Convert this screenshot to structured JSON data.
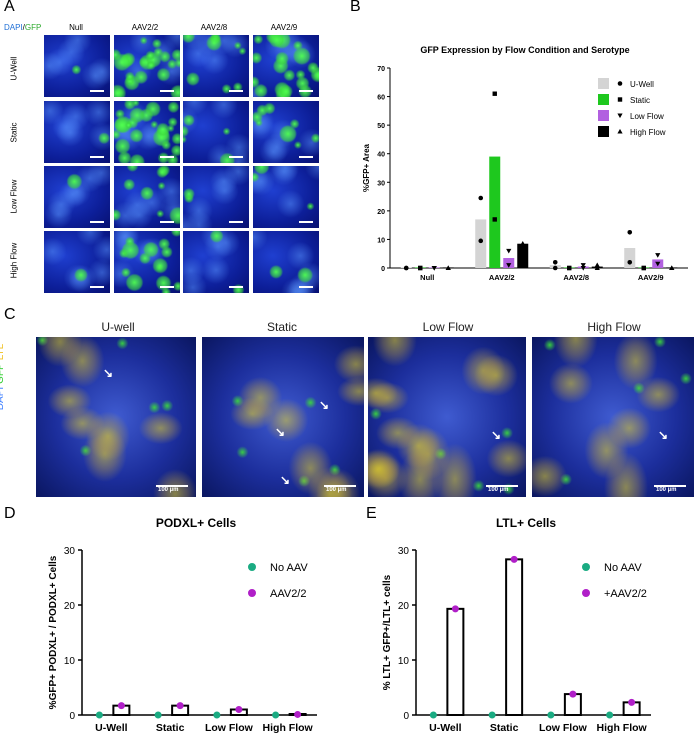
{
  "panels": {
    "A": "A",
    "B": "B",
    "C": "C",
    "D": "D",
    "E": "E"
  },
  "panel_a": {
    "stain_dapi": "DAPI",
    "stain_sep": "/",
    "stain_gfp": "GFP",
    "columns": [
      "Null",
      "AAV2/2",
      "AAV2/8",
      "AAV2/9"
    ],
    "rows": [
      "U-Well",
      "Static",
      "Low Flow",
      "High Flow"
    ]
  },
  "panel_c": {
    "titles": [
      "U-well",
      "Static",
      "Low Flow",
      "High Flow"
    ],
    "stain_dapi": "DAPI",
    "stain_gfp": "GFP",
    "stain_ltl": "LTL",
    "scalebar": "100 µm"
  },
  "colors": {
    "u_well": "#d4d4d4",
    "static": "#1ec81e",
    "low_flow": "#b260e0",
    "high_flow": "#000000",
    "no_aav": "#1aab82",
    "aav": "#b01fc8"
  },
  "chart_data": [
    {
      "type": "bar",
      "title": "GFP Expression by Flow Condition and Serotype",
      "ylabel": "%GFP+ Area",
      "xlabel": "",
      "ylim": [
        0,
        70
      ],
      "yticks": [
        0,
        10,
        20,
        30,
        40,
        50,
        60,
        70
      ],
      "categories": [
        "Null",
        "AAV2/2",
        "AAV2/8",
        "AAV2/9"
      ],
      "legend_position": "top-right",
      "series": [
        {
          "name": "U-Well",
          "values": [
            0,
            17,
            1,
            7
          ],
          "points": [
            [
              0,
              0
            ],
            [
              24.5,
              9.5
            ],
            [
              2,
              0
            ],
            [
              12.5,
              2
            ]
          ]
        },
        {
          "name": "Static",
          "values": [
            0,
            39,
            0,
            0
          ],
          "points": [
            [
              0,
              0
            ],
            [
              61,
              17
            ],
            [
              0,
              0
            ],
            [
              0,
              0
            ]
          ]
        },
        {
          "name": "Low Flow",
          "values": [
            0,
            3.5,
            0.5,
            3
          ],
          "points": [
            [
              0,
              0
            ],
            [
              6,
              1
            ],
            [
              1,
              0
            ],
            [
              4.5,
              1.5
            ]
          ]
        },
        {
          "name": "High Flow",
          "values": [
            0,
            8.5,
            0.5,
            0
          ],
          "points": [
            [
              0,
              0
            ],
            [
              8.5,
              8.5
            ],
            [
              1,
              0
            ],
            [
              0,
              0
            ]
          ]
        }
      ]
    },
    {
      "type": "bar",
      "title": "PODXL+ Cells",
      "ylabel": "%GFP+ PODXL+ / PODXL+ Cells",
      "xlabel": "",
      "ylim": [
        0,
        30
      ],
      "yticks": [
        0,
        10,
        20,
        30
      ],
      "categories": [
        "U-Well",
        "Static",
        "Low Flow",
        "High Flow"
      ],
      "legend_position": "top-right",
      "series": [
        {
          "name": "No AAV",
          "values": [
            0,
            0,
            0,
            0
          ]
        },
        {
          "name": "AAV2/2",
          "values": [
            1.7,
            1.7,
            1.0,
            0.1
          ]
        }
      ]
    },
    {
      "type": "bar",
      "title": "LTL+ Cells",
      "ylabel": "% LTL+ GFP+/LTL+ cells",
      "xlabel": "",
      "ylim": [
        0,
        30
      ],
      "yticks": [
        0,
        10,
        20,
        30
      ],
      "categories": [
        "U-Well",
        "Static",
        "Low Flow",
        "High Flow"
      ],
      "legend_position": "top-right",
      "series": [
        {
          "name": "No AAV",
          "values": [
            0,
            0,
            0,
            0
          ]
        },
        {
          "name": "+AAV2/2",
          "values": [
            19.3,
            28.3,
            3.8,
            2.3
          ]
        }
      ]
    }
  ]
}
